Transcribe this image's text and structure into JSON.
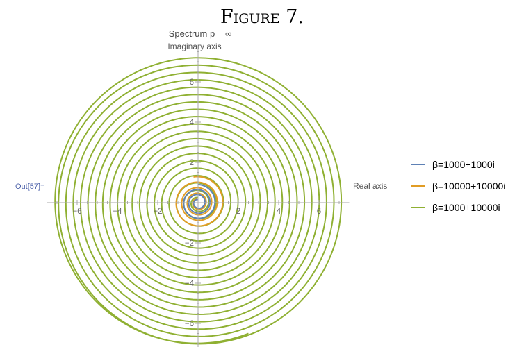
{
  "figure_caption": "Figure 7.",
  "cell_label": "Out[57]=",
  "chart_data": {
    "type": "line",
    "title": "Spectrum p = ∞",
    "xlabel": "Real axis",
    "ylabel": "Imaginary axis",
    "xlim": [
      -7.5,
      7.5
    ],
    "ylim": [
      -7.8,
      7.8
    ],
    "xticks": [
      -6,
      -4,
      -2,
      2,
      4,
      6
    ],
    "yticks": [
      -6,
      -4,
      -2,
      2,
      4,
      6
    ],
    "grid": false,
    "legend_position": "right",
    "series": [
      {
        "name": "β=1000+1000i",
        "color": "#5e81b5",
        "shape": "spiral",
        "r_inner": 0.15,
        "r_outer": 0.9,
        "turns": 3,
        "end_angle_deg": 90
      },
      {
        "name": "β=10000+10000i",
        "color": "#e19c24",
        "shape": "spiral",
        "r_inner": 0.2,
        "r_outer": 1.3,
        "turns": 4,
        "end_angle_deg": 100
      },
      {
        "name": "β=1000+10000i",
        "color": "#8fb032",
        "shape": "spiral",
        "r_inner": 0.25,
        "r_outer": 7.2,
        "turns": 19,
        "end_angle_deg": 90,
        "end_x": 2.5,
        "end_y": -6.5
      }
    ]
  }
}
